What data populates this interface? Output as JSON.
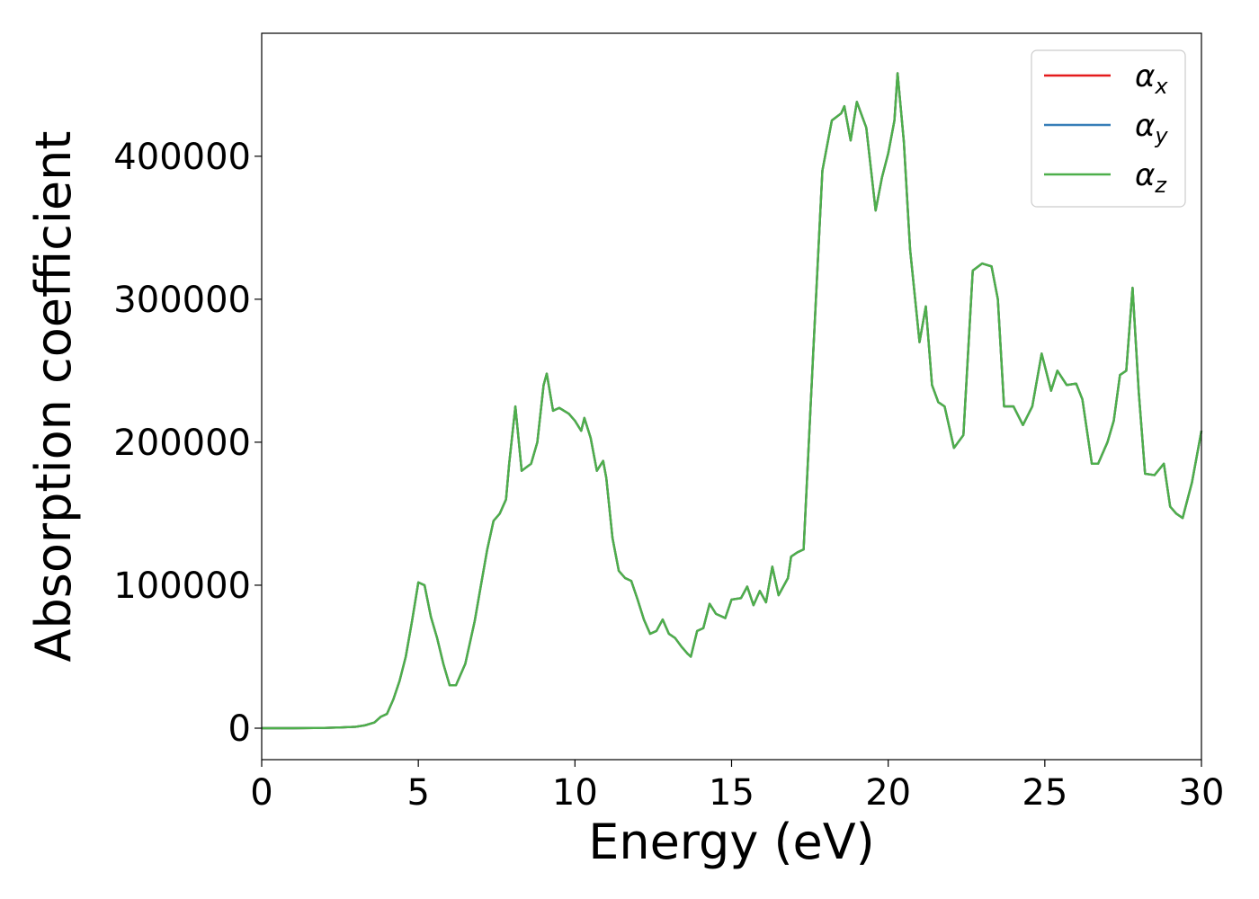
{
  "chart_data": {
    "type": "line",
    "title": "",
    "xlabel": "Energy (eV)",
    "ylabel": "Absorption coefficient",
    "xlim": [
      0,
      30
    ],
    "ylim": [
      -22000,
      486000
    ],
    "xticks": [
      0,
      5,
      10,
      15,
      20,
      25,
      30
    ],
    "xtick_labels": [
      "0",
      "5",
      "10",
      "15",
      "20",
      "25",
      "30"
    ],
    "yticks": [
      0,
      100000,
      200000,
      300000,
      400000
    ],
    "ytick_labels": [
      "0",
      "100000",
      "200000",
      "300000",
      "400000"
    ],
    "grid": false,
    "legend": {
      "location": "top-right"
    },
    "series": [
      {
        "name": "αx",
        "base": "α",
        "sub": "x",
        "color": "#e41a1c"
      },
      {
        "name": "αy",
        "base": "α",
        "sub": "y",
        "color": "#377eb8"
      },
      {
        "name": "αz",
        "base": "α",
        "sub": "z",
        "color": "#4daf4a"
      }
    ],
    "x": [
      0,
      1,
      2,
      2.5,
      3,
      3.3,
      3.6,
      3.8,
      4.0,
      4.2,
      4.4,
      4.6,
      4.8,
      5.0,
      5.2,
      5.4,
      5.6,
      5.8,
      6.0,
      6.2,
      6.5,
      6.8,
      7.0,
      7.2,
      7.4,
      7.6,
      7.8,
      7.9,
      8.1,
      8.3,
      8.6,
      8.8,
      9.0,
      9.1,
      9.3,
      9.5,
      9.8,
      10.0,
      10.2,
      10.3,
      10.5,
      10.7,
      10.9,
      11.0,
      11.2,
      11.4,
      11.6,
      11.8,
      12.0,
      12.2,
      12.4,
      12.6,
      12.8,
      13.0,
      13.2,
      13.4,
      13.6,
      13.7,
      13.9,
      14.1,
      14.3,
      14.5,
      14.8,
      15.0,
      15.3,
      15.5,
      15.7,
      15.9,
      16.1,
      16.3,
      16.5,
      16.8,
      16.9,
      17.1,
      17.3,
      17.6,
      17.9,
      18.2,
      18.5,
      18.6,
      18.8,
      19.0,
      19.3,
      19.6,
      19.8,
      20.0,
      20.2,
      20.3,
      20.5,
      20.7,
      21.0,
      21.2,
      21.4,
      21.6,
      21.8,
      22.1,
      22.4,
      22.7,
      23.0,
      23.3,
      23.5,
      23.7,
      24.0,
      24.3,
      24.6,
      24.9,
      25.2,
      25.4,
      25.7,
      26.0,
      26.2,
      26.5,
      26.7,
      27.0,
      27.2,
      27.4,
      27.6,
      27.8,
      28.0,
      28.2,
      28.5,
      28.8,
      29.0,
      29.2,
      29.4,
      29.7,
      30.0
    ],
    "values": [
      0,
      0,
      200,
      500,
      1000,
      2000,
      4000,
      8000,
      10000,
      20000,
      33000,
      50000,
      75000,
      102000,
      100000,
      78000,
      63000,
      45000,
      30000,
      30000,
      45000,
      75000,
      100000,
      125000,
      145000,
      150000,
      160000,
      185000,
      225000,
      180000,
      185000,
      200000,
      240000,
      248000,
      222000,
      224000,
      220000,
      215000,
      208000,
      217000,
      203000,
      180000,
      187000,
      175000,
      133000,
      110000,
      105000,
      103000,
      90000,
      76000,
      66000,
      68000,
      76000,
      66000,
      63000,
      57000,
      52000,
      50000,
      68000,
      70000,
      87000,
      80000,
      77000,
      90000,
      91000,
      99000,
      86000,
      96000,
      88000,
      113000,
      93000,
      105000,
      120000,
      123000,
      125000,
      260000,
      390000,
      425000,
      430000,
      435000,
      411000,
      438000,
      420000,
      362000,
      385000,
      402000,
      425000,
      458000,
      410000,
      335000,
      270000,
      295000,
      240000,
      228000,
      225000,
      196000,
      205000,
      320000,
      325000,
      323000,
      300000,
      225000,
      225000,
      212000,
      225000,
      262000,
      236000,
      250000,
      240000,
      241000,
      230000,
      185000,
      185000,
      200000,
      215000,
      247000,
      250000,
      308000,
      235000,
      178000,
      177000,
      185000,
      155000,
      150000,
      147000,
      172000,
      208000
    ]
  }
}
